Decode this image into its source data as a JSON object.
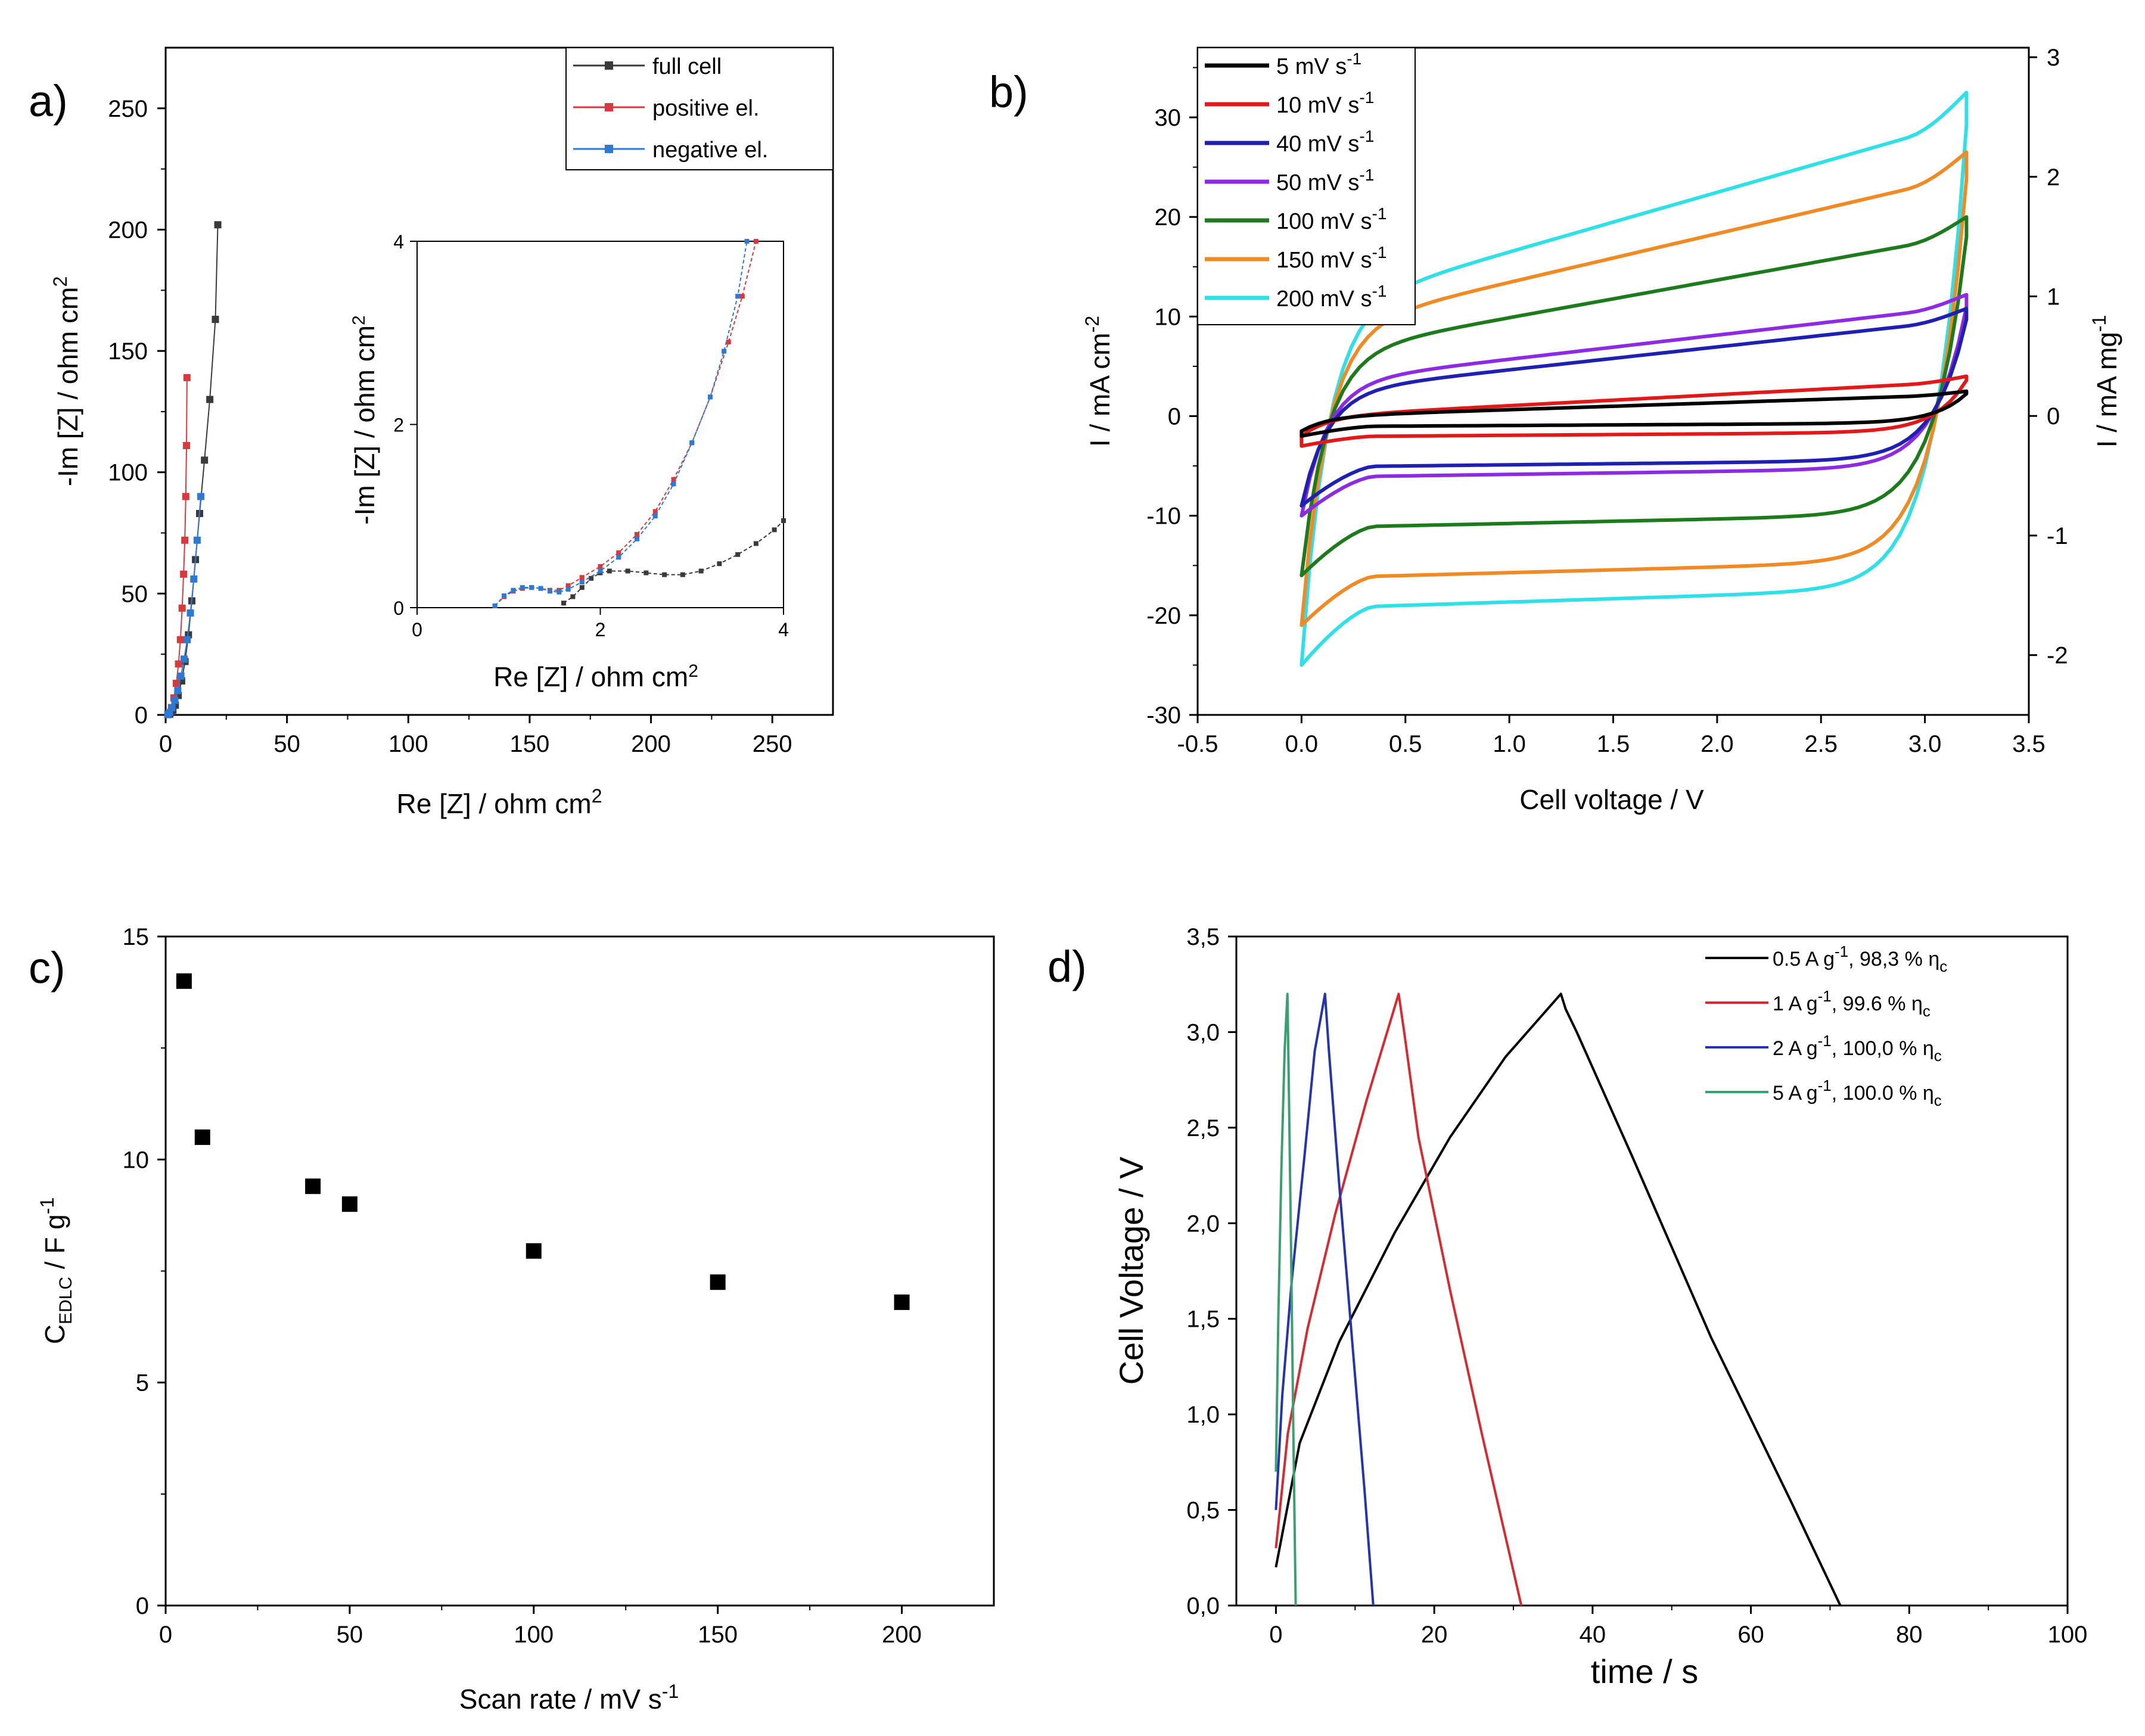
{
  "chart_data": [
    {
      "panel": "a)",
      "type": "scatter",
      "xlabel": "Re [Z] / ohm cm",
      "xlabel_sup": "2",
      "ylabel": "-Im [Z] / ohm cm",
      "ylabel_sup": "2",
      "xlim": [
        0,
        275
      ],
      "ylim": [
        0,
        275
      ],
      "xticks": [
        0,
        50,
        100,
        150,
        200,
        250
      ],
      "yticks": [
        0,
        50,
        100,
        150,
        200,
        250
      ],
      "legend": "top-right",
      "series": [
        {
          "name": "full cell",
          "color": "#3a3a3a",
          "x": [
            1.7,
            2.2,
            3.0,
            4.0,
            5.2,
            6.6,
            8.0,
            9.4,
            10.8,
            12.3,
            14.0,
            16.0,
            18.2,
            20.5
          ],
          "y": [
            0.3,
            1.0,
            2.0,
            4.0,
            8.0,
            14.0,
            22.0,
            33.0,
            47.0,
            64.0,
            83.0,
            105.0,
            130.0,
            163.0
          ]
        },
        {
          "name": "full cell (top)",
          "color": "#3a3a3a",
          "x": [
            20.5,
            21.5
          ],
          "y": [
            163.0,
            202.0
          ]
        },
        {
          "name": "positive el.",
          "color": "#d9383d",
          "x": [
            0.9,
            1.5,
            2.4,
            3.4,
            4.4,
            5.3,
            6.1,
            6.8,
            7.4,
            7.9,
            8.3,
            8.6,
            8.8
          ],
          "y": [
            0.1,
            1.0,
            3.0,
            7.0,
            13.0,
            21.0,
            31.0,
            44.0,
            58.0,
            72.0,
            90.0,
            111.0,
            139.0
          ]
        },
        {
          "name": "negative el.",
          "color": "#2c7ad6",
          "x": [
            0.9,
            1.6,
            2.6,
            3.8,
            5.0,
            6.3,
            7.6,
            8.9,
            10.2,
            11.6,
            13.0,
            14.5
          ],
          "y": [
            0.1,
            1.0,
            3.0,
            6.0,
            10.0,
            16.0,
            23.0,
            31.0,
            42.0,
            56.0,
            72.0,
            90.0
          ]
        }
      ],
      "inset": {
        "xlabel": "Re [Z] / ohm cm",
        "xlabel_sup": "2",
        "ylabel": "-Im [Z] / ohm cm",
        "ylabel_sup": "2",
        "xlim": [
          0,
          4
        ],
        "ylim": [
          0,
          4
        ],
        "xticks": [
          0,
          2,
          4
        ],
        "yticks": [
          0,
          2,
          4
        ],
        "series": [
          {
            "name": "full cell",
            "color": "#3a3a3a",
            "x": [
              1.6,
              1.7,
              1.8,
              1.9,
              2.0,
              2.1,
              2.3,
              2.5,
              2.7,
              2.9,
              3.1,
              3.3,
              3.5,
              3.7,
              3.9,
              4.0
            ],
            "y": [
              0.05,
              0.12,
              0.22,
              0.32,
              0.38,
              0.4,
              0.4,
              0.38,
              0.36,
              0.36,
              0.4,
              0.48,
              0.58,
              0.7,
              0.85,
              0.95
            ]
          },
          {
            "name": "positive el.",
            "color": "#d9383d",
            "x": [
              0.85,
              0.95,
              1.05,
              1.15,
              1.25,
              1.35,
              1.45,
              1.55,
              1.65,
              1.8,
              2.0,
              2.2,
              2.4,
              2.6,
              2.8,
              3.0,
              3.2,
              3.4,
              3.55,
              3.7
            ],
            "y": [
              0.02,
              0.12,
              0.18,
              0.21,
              0.22,
              0.21,
              0.19,
              0.19,
              0.24,
              0.33,
              0.45,
              0.6,
              0.8,
              1.05,
              1.4,
              1.8,
              2.3,
              2.9,
              3.4,
              4.0
            ]
          },
          {
            "name": "negative el.",
            "color": "#2c7ad6",
            "x": [
              0.85,
              0.95,
              1.05,
              1.15,
              1.25,
              1.35,
              1.45,
              1.55,
              1.65,
              1.8,
              2.0,
              2.2,
              2.4,
              2.6,
              2.8,
              3.0,
              3.2,
              3.35,
              3.5,
              3.6
            ],
            "y": [
              0.02,
              0.13,
              0.19,
              0.22,
              0.22,
              0.21,
              0.18,
              0.17,
              0.2,
              0.28,
              0.4,
              0.55,
              0.75,
              1.0,
              1.35,
              1.8,
              2.3,
              2.8,
              3.4,
              4.0
            ]
          }
        ]
      }
    },
    {
      "panel": "b)",
      "type": "line",
      "xlabel": "Cell voltage / V",
      "ylabel": "I  /  mA cm",
      "ylabel_sup": "-2",
      "ylabel_right": "I  /  mA mg",
      "ylabel_right_sup": "-1",
      "xlim": [
        -0.5,
        3.5
      ],
      "ylim": [
        -30,
        37
      ],
      "ylim_right": [
        -2.5,
        3.08
      ],
      "xticks": [
        -0.5,
        0.0,
        0.5,
        1.0,
        1.5,
        2.0,
        2.5,
        3.0,
        3.5
      ],
      "xtick_labels": [
        "-0.5",
        "0.0",
        "0.5",
        "1.0",
        "1.5",
        "2.0",
        "2.5",
        "3.0",
        "3.5"
      ],
      "yticks": [
        -30,
        -20,
        -10,
        0,
        10,
        20,
        30
      ],
      "yticks_right": [
        -2,
        -1,
        0,
        1,
        2,
        3
      ],
      "legend": "top-left",
      "series": [
        {
          "name": "5 mV s",
          "sup": "-1",
          "color": "#000000",
          "upper": [
            -1.5,
            0.3,
            2.5
          ],
          "lower": [
            -2.0,
            -1.0,
            0.8
          ]
        },
        {
          "name": "10 mV s",
          "sup": "-1",
          "color": "#e0191b",
          "upper": [
            -2.0,
            0.5,
            4.0
          ],
          "lower": [
            -3.0,
            -2.0,
            1.0
          ]
        },
        {
          "name": "40 mV s",
          "sup": "-1",
          "color": "#2020b0",
          "upper": [
            -9.0,
            3.5,
            10.8
          ],
          "lower": [
            -9.0,
            -5.0,
            1.5
          ]
        },
        {
          "name": "50 mV s",
          "sup": "-1",
          "color": "#8c2be2",
          "upper": [
            -10.0,
            4.5,
            12.2
          ],
          "lower": [
            -10.0,
            -6.0,
            2.0
          ]
        },
        {
          "name": "100 mV s",
          "sup": "-1",
          "color": "#1d7a1d",
          "upper": [
            -16.0,
            8.0,
            20.0
          ],
          "lower": [
            -16.0,
            -11.0,
            3.0
          ]
        },
        {
          "name": "150 mV s",
          "sup": "-1",
          "color": "#f08a24",
          "upper": [
            -21.0,
            11.0,
            26.5
          ],
          "lower": [
            -21.0,
            -16.0,
            3.8
          ]
        },
        {
          "name": "200 mV s",
          "sup": "-1",
          "color": "#2fe0e6",
          "upper": [
            -25.0,
            13.5,
            32.5
          ],
          "lower": [
            -25.0,
            -19.0,
            4.5
          ]
        }
      ]
    },
    {
      "panel": "c)",
      "type": "scatter",
      "xlabel": "Scan rate / mV s",
      "xlabel_sup": "-1",
      "ylabel": "C",
      "ylabel_sub": "EDLC",
      "ylabel_rest": " / F g",
      "ylabel_sup": "-1",
      "xlim": [
        0,
        225
      ],
      "ylim": [
        0,
        15
      ],
      "xticks": [
        0,
        50,
        100,
        150,
        200
      ],
      "yticks": [
        0,
        5,
        10,
        15
      ],
      "x": [
        5,
        10,
        40,
        50,
        100,
        150,
        200
      ],
      "y": [
        14.0,
        10.5,
        9.4,
        9.0,
        7.95,
        7.25,
        6.8
      ]
    },
    {
      "panel": "d)",
      "type": "line",
      "xlabel": "time / s",
      "ylabel": "Cell Voltage / V",
      "xlim": [
        -5,
        100
      ],
      "ylim": [
        0,
        3.5
      ],
      "xticks": [
        0,
        20,
        40,
        60,
        80,
        100
      ],
      "yticks": [
        0.0,
        0.5,
        1.0,
        1.5,
        2.0,
        2.5,
        3.0,
        3.5
      ],
      "ytick_labels": [
        "0,0",
        "0,5",
        "1,0",
        "1,5",
        "2,0",
        "2,5",
        "3,0",
        "3,5"
      ],
      "legend": "top-right",
      "series": [
        {
          "name": "0.5 A g",
          "sup": "-1",
          "rest": ", 98,3 % η",
          "sub": "c",
          "color": "#000000",
          "t": [
            0,
            3,
            8,
            15,
            22,
            29,
            36,
            36.6,
            38,
            45,
            55,
            65,
            71.3
          ],
          "v": [
            0.2,
            0.85,
            1.38,
            1.95,
            2.45,
            2.87,
            3.2,
            3.12,
            3.0,
            2.35,
            1.4,
            0.55,
            0.0
          ]
        },
        {
          "name": "1 A g",
          "sup": "-1",
          "rest": ",    99.6 % η",
          "sub": "c",
          "color": "#d9282f",
          "t": [
            0,
            1.5,
            4,
            7.5,
            11.5,
            15.5,
            16.2,
            18,
            22,
            26,
            31
          ],
          "v": [
            0.3,
            0.9,
            1.45,
            2.05,
            2.65,
            3.2,
            3.0,
            2.45,
            1.65,
            0.9,
            0.0
          ]
        },
        {
          "name": "2 A g",
          "sup": "-1",
          "rest": ",  100,0 % η",
          "sub": "c",
          "color": "#2433b0",
          "t": [
            0,
            0.8,
            2.0,
            3.6,
            4.9,
            6.2,
            6.7,
            8.0,
            9.8,
            11.2,
            12.3
          ],
          "v": [
            0.5,
            1.1,
            1.7,
            2.35,
            2.9,
            3.2,
            2.9,
            2.2,
            1.3,
            0.6,
            0.0
          ]
        },
        {
          "name": "5 A g",
          "sup": "-1",
          "rest": ",  100.0 % η",
          "sub": "c",
          "color": "#3aa070",
          "t": [
            0,
            0.3,
            0.7,
            1.1,
            1.45,
            1.6,
            1.9,
            2.2,
            2.4,
            2.5
          ],
          "v": [
            0.7,
            1.5,
            2.3,
            2.9,
            3.2,
            2.8,
            1.9,
            0.9,
            0.3,
            0.0
          ]
        }
      ]
    }
  ]
}
